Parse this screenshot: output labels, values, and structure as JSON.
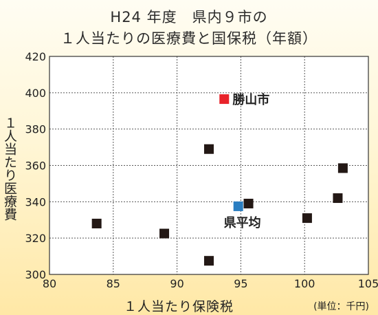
{
  "chart_data": {
    "type": "scatter",
    "title": "H24 年度　県内９市の",
    "subtitle": "１人当たりの医療費と国保税（年額）",
    "xlabel": "１人当たり保険税",
    "ylabel": "１人当たり医療費",
    "unit_note": "(単位：千円)",
    "xlim": [
      80,
      105
    ],
    "ylim": [
      300,
      420
    ],
    "x_ticks": [
      "80",
      "85",
      "90",
      "95",
      "100",
      "105"
    ],
    "y_ticks": [
      "300",
      "320",
      "340",
      "360",
      "380",
      "400",
      "420"
    ],
    "grid": true,
    "points": [
      {
        "x": 83.7,
        "y": 328,
        "color": "#231815",
        "label": ""
      },
      {
        "x": 89.0,
        "y": 322.5,
        "color": "#231815",
        "label": ""
      },
      {
        "x": 92.5,
        "y": 369,
        "color": "#231815",
        "label": ""
      },
      {
        "x": 92.5,
        "y": 307.5,
        "color": "#231815",
        "label": ""
      },
      {
        "x": 95.6,
        "y": 339,
        "color": "#231815",
        "label": ""
      },
      {
        "x": 100.2,
        "y": 331,
        "color": "#231815",
        "label": ""
      },
      {
        "x": 102.6,
        "y": 342,
        "color": "#231815",
        "label": ""
      },
      {
        "x": 103.0,
        "y": 358.5,
        "color": "#231815",
        "label": ""
      },
      {
        "x": 93.7,
        "y": 396.5,
        "color": "#e8232a",
        "label": "勝山市"
      },
      {
        "x": 94.8,
        "y": 337.5,
        "color": "#2b7ec1",
        "label": "県平均"
      }
    ]
  }
}
